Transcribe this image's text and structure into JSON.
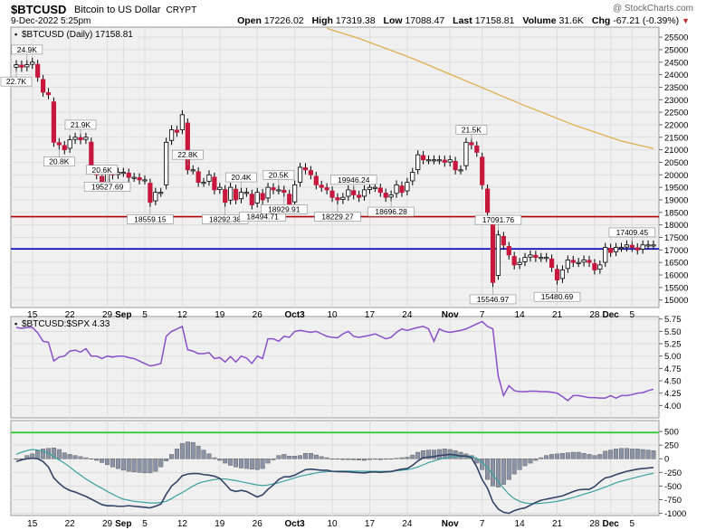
{
  "header": {
    "symbol": "$BTCUSD",
    "name": "Bitcoin to US Dollar",
    "exchange": "CRYPT",
    "date": "9-Dec-2022 5:25pm",
    "copyright": "@ StockCharts.com",
    "open_label": "Open",
    "open": "17226.02",
    "high_label": "High",
    "high": "17319.38",
    "low_label": "Low",
    "low": "17088.47",
    "last_label": "Last",
    "last": "17158.81",
    "volume_label": "Volume",
    "volume": "31.6K",
    "chg_label": "Chg",
    "chg": "-67.21 (-0.39%)",
    "chg_icon": "down-triangle-icon"
  },
  "colors": {
    "up": "#ffffff",
    "down": "#c8173c",
    "ma": "#e0b050",
    "hline_red": "#b00000",
    "hline_blue": "#0000c0",
    "rel": "#8a50c8",
    "macd": "#334466",
    "signal": "#3aa0a0",
    "hist": "#8a94a6",
    "zero": "#22cc22"
  },
  "chart_data": [
    {
      "type": "candlestick",
      "title": "$BTCUSD (Daily) 17158.81",
      "ylim": [
        14700,
        25900
      ],
      "yticks": [
        15000,
        15500,
        16000,
        16500,
        17000,
        17500,
        18000,
        18500,
        19000,
        19500,
        20000,
        20500,
        21000,
        21500,
        22000,
        22500,
        23000,
        23500,
        24000,
        24500,
        25000,
        25500
      ],
      "x_dates": [
        "Aug 12",
        "Aug 13",
        "Aug 14",
        "Aug 15",
        "Aug 16",
        "Aug 17",
        "Aug 18",
        "Aug 19",
        "Aug 20",
        "Aug 21",
        "Aug 22",
        "Aug 23",
        "Aug 24",
        "Aug 25",
        "Aug 26",
        "Aug 27",
        "Aug 28",
        "Aug 29",
        "Aug 30",
        "Aug 31",
        "Sep 1",
        "Sep 2",
        "Sep 3",
        "Sep 4",
        "Sep 5",
        "Sep 6",
        "Sep 7",
        "Sep 8",
        "Sep 9",
        "Sep 10",
        "Sep 11",
        "Sep 12",
        "Sep 13",
        "Sep 14",
        "Sep 15",
        "Sep 16",
        "Sep 17",
        "Sep 18",
        "Sep 19",
        "Sep 20",
        "Sep 21",
        "Sep 22",
        "Sep 23",
        "Sep 24",
        "Sep 25",
        "Sep 26",
        "Sep 27",
        "Sep 28",
        "Sep 29",
        "Sep 30",
        "Oct 1",
        "Oct 2",
        "Oct 3",
        "Oct 4",
        "Oct 5",
        "Oct 6",
        "Oct 7",
        "Oct 8",
        "Oct 9",
        "Oct 10",
        "Oct 11",
        "Oct 12",
        "Oct 13",
        "Oct 14",
        "Oct 15",
        "Oct 16",
        "Oct 17",
        "Oct 18",
        "Oct 19",
        "Oct 20",
        "Oct 21",
        "Oct 22",
        "Oct 23",
        "Oct 24",
        "Oct 25",
        "Oct 26",
        "Oct 27",
        "Oct 28",
        "Oct 29",
        "Oct 30",
        "Oct 31",
        "Nov 1",
        "Nov 2",
        "Nov 3",
        "Nov 4",
        "Nov 5",
        "Nov 6",
        "Nov 7",
        "Nov 8",
        "Nov 9",
        "Nov 10",
        "Nov 11",
        "Nov 12",
        "Nov 13",
        "Nov 14",
        "Nov 15",
        "Nov 16",
        "Nov 17",
        "Nov 18",
        "Nov 19",
        "Nov 20",
        "Nov 21",
        "Nov 22",
        "Nov 23",
        "Nov 24",
        "Nov 25",
        "Nov 26",
        "Nov 27",
        "Nov 28",
        "Nov 29",
        "Nov 30",
        "Dec 1",
        "Dec 2",
        "Dec 3",
        "Dec 4",
        "Dec 5",
        "Dec 6",
        "Dec 7",
        "Dec 8",
        "Dec 9"
      ],
      "x_tick_labels": [
        {
          "date": "Aug 15",
          "label": "15"
        },
        {
          "date": "Aug 22",
          "label": "22"
        },
        {
          "date": "Aug 29",
          "label": "29"
        },
        {
          "date": "Sep 1",
          "label": "Sep"
        },
        {
          "date": "Sep 5",
          "label": "5"
        },
        {
          "date": "Sep 12",
          "label": "12"
        },
        {
          "date": "Sep 19",
          "label": "19"
        },
        {
          "date": "Sep 26",
          "label": "26"
        },
        {
          "date": "Oct 3",
          "label": "Oct3"
        },
        {
          "date": "Oct 10",
          "label": "10"
        },
        {
          "date": "Oct 17",
          "label": "17"
        },
        {
          "date": "Oct 24",
          "label": "24"
        },
        {
          "date": "Nov 1",
          "label": "Nov"
        },
        {
          "date": "Nov 7",
          "label": "7"
        },
        {
          "date": "Nov 14",
          "label": "14"
        },
        {
          "date": "Nov 21",
          "label": "21"
        },
        {
          "date": "Nov 28",
          "label": "28"
        },
        {
          "date": "Dec 1",
          "label": "Dec"
        },
        {
          "date": "Dec 5",
          "label": "5"
        }
      ],
      "closes": [
        24400,
        24300,
        24400,
        24500,
        23900,
        23300,
        23200,
        21300,
        21200,
        21000,
        21400,
        21500,
        21400,
        21500,
        20200,
        20000,
        19600,
        20200,
        20000,
        20100,
        20100,
        19900,
        19900,
        19800,
        19800,
        18900,
        19300,
        19300,
        21300,
        21800,
        21700,
        22400,
        20200,
        20200,
        19700,
        19700,
        20000,
        19400,
        19500,
        18900,
        19500,
        19000,
        19300,
        19300,
        18800,
        19300,
        19000,
        19500,
        19400,
        19400,
        19300,
        18800,
        19600,
        20300,
        20200,
        20000,
        19600,
        19500,
        19400,
        19100,
        19000,
        19100,
        19400,
        19200,
        19100,
        19400,
        19500,
        19500,
        19300,
        19100,
        19200,
        19600,
        19300,
        19700,
        20100,
        20800,
        20600,
        20600,
        20600,
        20600,
        20500,
        20600,
        20200,
        20200,
        21300,
        21200,
        20900,
        19600,
        18500,
        15700,
        17600,
        17200,
        16800,
        16400,
        16500,
        16700,
        16800,
        16700,
        16700,
        16700,
        16300,
        15800,
        16200,
        16600,
        16500,
        16500,
        16600,
        16500,
        16200,
        16400,
        17100,
        16900,
        17100,
        17100,
        17200,
        17100,
        17000,
        17200,
        17200,
        17200
      ],
      "price_labels": [
        {
          "date": "Aug 12",
          "text": "22.7K",
          "where": "below"
        },
        {
          "date": "Aug 14",
          "text": "24.9K",
          "where": "above"
        },
        {
          "date": "Aug 20",
          "text": "20.8K",
          "where": "below"
        },
        {
          "date": "Aug 24",
          "text": "21.9K",
          "where": "above"
        },
        {
          "date": "Aug 28",
          "text": "20.6K",
          "where": "above"
        },
        {
          "date": "Aug 29",
          "text": "19527.69",
          "where": "below"
        },
        {
          "date": "Sep 6",
          "text": "18559.15",
          "where": "below"
        },
        {
          "date": "Sep 13",
          "text": "22.8K",
          "where": "above"
        },
        {
          "date": "Sep 20",
          "text": "18292.38",
          "where": "below"
        },
        {
          "date": "Sep 23",
          "text": "20.4K",
          "where": "above"
        },
        {
          "date": "Sep 27",
          "text": "18494.71",
          "where": "below"
        },
        {
          "date": "Sep 30",
          "text": "20.5K",
          "where": "above"
        },
        {
          "date": "Oct 1",
          "text": "18929.91",
          "where": "below"
        },
        {
          "date": "Oct 11",
          "text": "18229.27",
          "where": "below"
        },
        {
          "date": "Oct 14",
          "text": "19946.24",
          "where": "above"
        },
        {
          "date": "Oct 21",
          "text": "18696.28",
          "where": "below"
        },
        {
          "date": "Nov 5",
          "text": "21.5K",
          "where": "above"
        },
        {
          "date": "Nov 9",
          "text": "15546.97",
          "where": "below"
        },
        {
          "date": "Nov 10",
          "text": "17091.76",
          "where": "above"
        },
        {
          "date": "Nov 21",
          "text": "15480.69",
          "where": "below"
        },
        {
          "date": "Dec 5",
          "text": "17409.45",
          "where": "above"
        }
      ],
      "moving_average": [
        {
          "date": "Oct 9",
          "value": 25850
        },
        {
          "date": "Oct 15",
          "value": 25450
        },
        {
          "date": "Oct 25",
          "value": 24650
        },
        {
          "date": "Nov 4",
          "value": 23750
        },
        {
          "date": "Nov 14",
          "value": 22850
        },
        {
          "date": "Nov 24",
          "value": 22000
        },
        {
          "date": "Dec 3",
          "value": 21350
        },
        {
          "date": "Dec 9",
          "value": 21050
        }
      ],
      "horizontal_lines": [
        {
          "value": 18330,
          "color": "red"
        },
        {
          "value": 17040,
          "color": "blue"
        }
      ]
    },
    {
      "type": "line",
      "title": "$BTCUSD:$SPX 4.33",
      "ylim": [
        3.75,
        5.8
      ],
      "yticks": [
        4.0,
        4.25,
        4.5,
        4.75,
        5.0,
        5.25,
        5.5,
        5.75
      ],
      "ytick_labels": [
        "4.00",
        "4.25",
        "4.50",
        "4.75",
        "5.00",
        "5.25",
        "5.50",
        "5.75"
      ],
      "values": [
        5.58,
        5.56,
        5.58,
        5.58,
        5.47,
        5.3,
        5.28,
        4.9,
        4.98,
        5.0,
        5.1,
        5.12,
        5.08,
        5.15,
        5.0,
        5.0,
        4.95,
        5.0,
        4.98,
        5.0,
        5.0,
        4.97,
        4.95,
        4.9,
        4.85,
        4.8,
        4.82,
        4.85,
        5.4,
        5.5,
        5.55,
        5.6,
        5.13,
        5.1,
        5.05,
        5.05,
        5.07,
        4.95,
        4.97,
        4.88,
        4.99,
        4.88,
        5.0,
        4.96,
        4.85,
        5.0,
        4.95,
        5.35,
        5.35,
        5.3,
        5.4,
        5.38,
        5.5,
        5.52,
        5.5,
        5.48,
        5.5,
        5.45,
        5.4,
        5.38,
        5.37,
        5.45,
        5.5,
        5.4,
        5.38,
        5.4,
        5.42,
        5.45,
        5.4,
        5.35,
        5.38,
        5.48,
        5.55,
        5.52,
        5.55,
        5.58,
        5.6,
        5.55,
        5.3,
        5.55,
        5.5,
        5.48,
        5.5,
        5.52,
        5.55,
        5.6,
        5.65,
        5.7,
        5.6,
        5.55,
        4.6,
        4.2,
        4.4,
        4.3,
        4.28,
        4.28,
        4.29,
        4.29,
        4.28,
        4.28,
        4.27,
        4.25,
        4.18,
        4.1,
        4.2,
        4.2,
        4.18,
        4.16,
        4.16,
        4.15,
        4.15,
        4.2,
        4.15,
        4.2,
        4.2,
        4.22,
        4.25,
        4.26,
        4.3,
        4.33
      ]
    },
    {
      "type": "line",
      "title": "",
      "ylim": [
        -1040,
        700
      ],
      "yticks": [
        -1000,
        -750,
        -500,
        -250,
        0,
        250,
        500
      ],
      "ytick_labels": [
        "-1000",
        "-750",
        "-500",
        "-250",
        "0",
        "250",
        "500"
      ],
      "zero_line_value": 480,
      "macd": [
        -50,
        -20,
        0,
        10,
        0,
        -50,
        -150,
        -350,
        -450,
        -530,
        -580,
        -610,
        -650,
        -690,
        -740,
        -790,
        -840,
        -860,
        -860,
        -870,
        -870,
        -860,
        -870,
        -880,
        -890,
        -900,
        -870,
        -830,
        -650,
        -500,
        -420,
        -310,
        -280,
        -270,
        -270,
        -290,
        -300,
        -320,
        -360,
        -460,
        -570,
        -600,
        -580,
        -600,
        -650,
        -700,
        -660,
        -560,
        -480,
        -380,
        -330,
        -330,
        -300,
        -250,
        -200,
        -190,
        -200,
        -210,
        -210,
        -230,
        -235,
        -238,
        -240,
        -250,
        -255,
        -260,
        -245,
        -240,
        -250,
        -240,
        -235,
        -210,
        -190,
        -180,
        -120,
        -40,
        20,
        30,
        40,
        60,
        70,
        80,
        70,
        50,
        50,
        20,
        -150,
        -380,
        -540,
        -790,
        -920,
        -980,
        -1000,
        -950,
        -920,
        -900,
        -850,
        -800,
        -760,
        -740,
        -720,
        -700,
        -680,
        -640,
        -600,
        -570,
        -560,
        -560,
        -510,
        -420,
        -350,
        -330,
        -290,
        -260,
        -230,
        -210,
        -190,
        -180,
        -170,
        -160
      ],
      "signal": [
        80,
        120,
        150,
        170,
        160,
        140,
        100,
        40,
        -20,
        -80,
        -150,
        -230,
        -300,
        -370,
        -430,
        -490,
        -540,
        -600,
        -650,
        -700,
        -740,
        -760,
        -780,
        -790,
        -800,
        -810,
        -810,
        -800,
        -780,
        -730,
        -670,
        -620,
        -560,
        -500,
        -450,
        -420,
        -400,
        -380,
        -370,
        -370,
        -385,
        -400,
        -420,
        -440,
        -460,
        -480,
        -490,
        -480,
        -460,
        -440,
        -410,
        -380,
        -350,
        -320,
        -300,
        -280,
        -260,
        -245,
        -235,
        -230,
        -228,
        -225,
        -225,
        -228,
        -228,
        -230,
        -230,
        -230,
        -232,
        -230,
        -228,
        -220,
        -210,
        -200,
        -180,
        -150,
        -110,
        -70,
        -40,
        -10,
        10,
        30,
        40,
        45,
        45,
        45,
        10,
        -60,
        -160,
        -290,
        -420,
        -540,
        -650,
        -730,
        -780,
        -810,
        -820,
        -820,
        -815,
        -805,
        -795,
        -780,
        -760,
        -735,
        -710,
        -680,
        -650,
        -620,
        -590,
        -555,
        -520,
        -480,
        -440,
        -410,
        -385,
        -360,
        -335,
        -310,
        -285,
        -265
      ],
      "histogram": [
        0,
        0,
        60,
        90,
        150,
        180,
        190,
        200,
        170,
        110,
        80,
        60,
        40,
        20,
        0,
        -30,
        -70,
        -110,
        -150,
        -180,
        -210,
        -230,
        -240,
        -250,
        -260,
        -260,
        -230,
        -150,
        -40,
        80,
        180,
        280,
        310,
        300,
        230,
        160,
        90,
        20,
        -30,
        -80,
        -120,
        -150,
        -170,
        -180,
        -190,
        -200,
        -180,
        -80,
        -20,
        60,
        80,
        50,
        50,
        60,
        100,
        100,
        70,
        40,
        20,
        0,
        -10,
        -15,
        -15,
        -20,
        -25,
        -30,
        -15,
        -10,
        -15,
        -10,
        -5,
        10,
        20,
        30,
        70,
        120,
        150,
        160,
        160,
        170,
        180,
        170,
        150,
        120,
        90,
        60,
        -80,
        -200,
        -380,
        -500,
        -520,
        -470,
        -380,
        -280,
        -200,
        -130,
        -80,
        -30,
        20,
        60,
        80,
        90,
        100,
        110,
        120,
        120,
        100,
        80,
        60,
        80,
        140,
        160,
        180,
        190,
        190,
        180,
        180,
        170,
        160,
        150
      ]
    }
  ]
}
